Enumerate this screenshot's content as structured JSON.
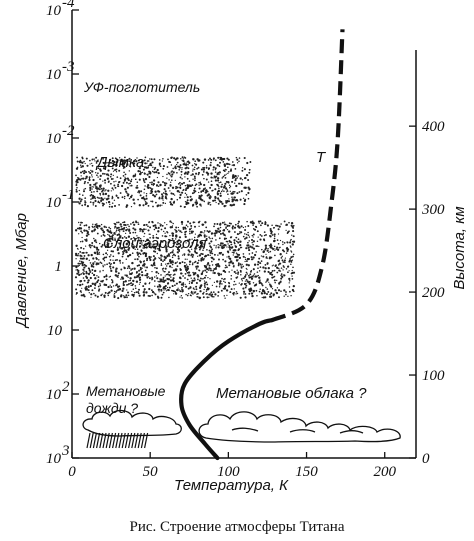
{
  "chart_data": {
    "type": "line",
    "caption": "Рис. Строение атмосферы Титана",
    "xlabel": "Температура, К",
    "ylabel_left": "Давление, Мбар",
    "ylabel_right": "Высота, км",
    "xlim": [
      0,
      220
    ],
    "ylim_pressure_mbar": [
      1000,
      0.0001
    ],
    "ylim_height_km": [
      0,
      540
    ],
    "y_scale": "log",
    "x_ticks": [
      {
        "value": 0,
        "label": "0"
      },
      {
        "value": 50,
        "label": "50"
      },
      {
        "value": 100,
        "label": "100"
      },
      {
        "value": 150,
        "label": "150"
      },
      {
        "value": 200,
        "label": "200"
      }
    ],
    "left_ticks": [
      {
        "value": 0.0001,
        "base": "10",
        "exp": "-4"
      },
      {
        "value": 0.001,
        "base": "10",
        "exp": "-3"
      },
      {
        "value": 0.01,
        "base": "10",
        "exp": "-2"
      },
      {
        "value": 0.1,
        "base": "10",
        "exp": "-1"
      },
      {
        "value": 1,
        "base": "1",
        "exp": ""
      },
      {
        "value": 10,
        "base": "10",
        "exp": ""
      },
      {
        "value": 100,
        "base": "10",
        "exp": "2"
      },
      {
        "value": 1000,
        "base": "10",
        "exp": "3"
      }
    ],
    "right_ticks": [
      {
        "value": 0,
        "label": "0"
      },
      {
        "value": 100,
        "label": "100"
      },
      {
        "value": 200,
        "label": "200"
      },
      {
        "value": 300,
        "label": "300"
      },
      {
        "value": 400,
        "label": "400"
      }
    ],
    "series": [
      {
        "name": "T",
        "solid": [
          {
            "x": 93,
            "y": 1000
          },
          {
            "x": 85,
            "y": 600
          },
          {
            "x": 75,
            "y": 300
          },
          {
            "x": 70,
            "y": 150
          },
          {
            "x": 72,
            "y": 70
          },
          {
            "x": 85,
            "y": 30
          },
          {
            "x": 100,
            "y": 15
          },
          {
            "x": 120,
            "y": 8
          },
          {
            "x": 128,
            "y": 7
          }
        ],
        "dashed": [
          {
            "x": 128,
            "y": 7
          },
          {
            "x": 150,
            "y": 4
          },
          {
            "x": 160,
            "y": 1
          },
          {
            "x": 166,
            "y": 0.1
          },
          {
            "x": 170,
            "y": 0.01
          },
          {
            "x": 173,
            "y": 0.0002
          }
        ]
      }
    ],
    "annotations": {
      "uv_absorber": "УФ-поглотитель",
      "haze": "Дымка",
      "aerosol": "Слой аэрозоля",
      "t_label": "T",
      "methane_clouds": "Метановые облака ?",
      "methane_rain_1": "Метановые",
      "methane_rain_2": "дожди ?"
    },
    "regions": [
      {
        "label_ref": "haze",
        "x_range": [
          0,
          115
        ],
        "p_range": [
          0.02,
          0.12
        ]
      },
      {
        "label_ref": "aerosol",
        "x_range": [
          0,
          142
        ],
        "p_range": [
          0.2,
          3.2
        ]
      }
    ]
  }
}
